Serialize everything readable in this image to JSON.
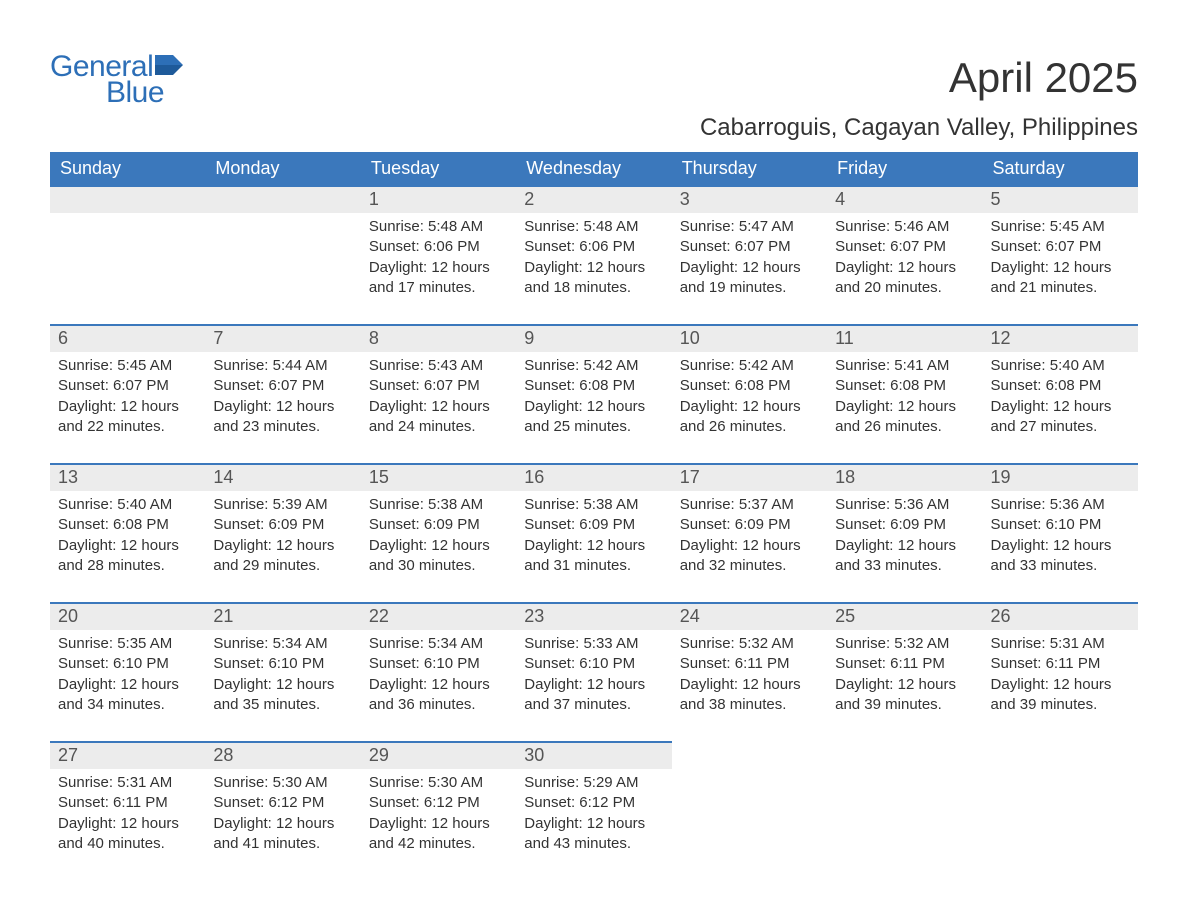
{
  "brand": {
    "line1": "General",
    "line2": "Blue",
    "accent_color": "#2d6fb7"
  },
  "title": "April 2025",
  "subtitle": "Cabarroguis, Cagayan Valley, Philippines",
  "colors": {
    "header_bg": "#3b78bc",
    "header_text": "#ffffff",
    "daynum_bg": "#ececec",
    "row_divider": "#3b78bc",
    "page_bg": "#ffffff",
    "text": "#333333"
  },
  "typography": {
    "title_fontsize": 42,
    "subtitle_fontsize": 24,
    "dow_fontsize": 18,
    "daynum_fontsize": 18,
    "body_fontsize": 15,
    "font_family": "Arial"
  },
  "days_of_week": [
    "Sunday",
    "Monday",
    "Tuesday",
    "Wednesday",
    "Thursday",
    "Friday",
    "Saturday"
  ],
  "weeks": [
    [
      {
        "day": "",
        "sunrise": "",
        "sunset": "",
        "daylight": ""
      },
      {
        "day": "",
        "sunrise": "",
        "sunset": "",
        "daylight": ""
      },
      {
        "day": "1",
        "sunrise": "Sunrise: 5:48 AM",
        "sunset": "Sunset: 6:06 PM",
        "daylight": "Daylight: 12 hours and 17 minutes."
      },
      {
        "day": "2",
        "sunrise": "Sunrise: 5:48 AM",
        "sunset": "Sunset: 6:06 PM",
        "daylight": "Daylight: 12 hours and 18 minutes."
      },
      {
        "day": "3",
        "sunrise": "Sunrise: 5:47 AM",
        "sunset": "Sunset: 6:07 PM",
        "daylight": "Daylight: 12 hours and 19 minutes."
      },
      {
        "day": "4",
        "sunrise": "Sunrise: 5:46 AM",
        "sunset": "Sunset: 6:07 PM",
        "daylight": "Daylight: 12 hours and 20 minutes."
      },
      {
        "day": "5",
        "sunrise": "Sunrise: 5:45 AM",
        "sunset": "Sunset: 6:07 PM",
        "daylight": "Daylight: 12 hours and 21 minutes."
      }
    ],
    [
      {
        "day": "6",
        "sunrise": "Sunrise: 5:45 AM",
        "sunset": "Sunset: 6:07 PM",
        "daylight": "Daylight: 12 hours and 22 minutes."
      },
      {
        "day": "7",
        "sunrise": "Sunrise: 5:44 AM",
        "sunset": "Sunset: 6:07 PM",
        "daylight": "Daylight: 12 hours and 23 minutes."
      },
      {
        "day": "8",
        "sunrise": "Sunrise: 5:43 AM",
        "sunset": "Sunset: 6:07 PM",
        "daylight": "Daylight: 12 hours and 24 minutes."
      },
      {
        "day": "9",
        "sunrise": "Sunrise: 5:42 AM",
        "sunset": "Sunset: 6:08 PM",
        "daylight": "Daylight: 12 hours and 25 minutes."
      },
      {
        "day": "10",
        "sunrise": "Sunrise: 5:42 AM",
        "sunset": "Sunset: 6:08 PM",
        "daylight": "Daylight: 12 hours and 26 minutes."
      },
      {
        "day": "11",
        "sunrise": "Sunrise: 5:41 AM",
        "sunset": "Sunset: 6:08 PM",
        "daylight": "Daylight: 12 hours and 26 minutes."
      },
      {
        "day": "12",
        "sunrise": "Sunrise: 5:40 AM",
        "sunset": "Sunset: 6:08 PM",
        "daylight": "Daylight: 12 hours and 27 minutes."
      }
    ],
    [
      {
        "day": "13",
        "sunrise": "Sunrise: 5:40 AM",
        "sunset": "Sunset: 6:08 PM",
        "daylight": "Daylight: 12 hours and 28 minutes."
      },
      {
        "day": "14",
        "sunrise": "Sunrise: 5:39 AM",
        "sunset": "Sunset: 6:09 PM",
        "daylight": "Daylight: 12 hours and 29 minutes."
      },
      {
        "day": "15",
        "sunrise": "Sunrise: 5:38 AM",
        "sunset": "Sunset: 6:09 PM",
        "daylight": "Daylight: 12 hours and 30 minutes."
      },
      {
        "day": "16",
        "sunrise": "Sunrise: 5:38 AM",
        "sunset": "Sunset: 6:09 PM",
        "daylight": "Daylight: 12 hours and 31 minutes."
      },
      {
        "day": "17",
        "sunrise": "Sunrise: 5:37 AM",
        "sunset": "Sunset: 6:09 PM",
        "daylight": "Daylight: 12 hours and 32 minutes."
      },
      {
        "day": "18",
        "sunrise": "Sunrise: 5:36 AM",
        "sunset": "Sunset: 6:09 PM",
        "daylight": "Daylight: 12 hours and 33 minutes."
      },
      {
        "day": "19",
        "sunrise": "Sunrise: 5:36 AM",
        "sunset": "Sunset: 6:10 PM",
        "daylight": "Daylight: 12 hours and 33 minutes."
      }
    ],
    [
      {
        "day": "20",
        "sunrise": "Sunrise: 5:35 AM",
        "sunset": "Sunset: 6:10 PM",
        "daylight": "Daylight: 12 hours and 34 minutes."
      },
      {
        "day": "21",
        "sunrise": "Sunrise: 5:34 AM",
        "sunset": "Sunset: 6:10 PM",
        "daylight": "Daylight: 12 hours and 35 minutes."
      },
      {
        "day": "22",
        "sunrise": "Sunrise: 5:34 AM",
        "sunset": "Sunset: 6:10 PM",
        "daylight": "Daylight: 12 hours and 36 minutes."
      },
      {
        "day": "23",
        "sunrise": "Sunrise: 5:33 AM",
        "sunset": "Sunset: 6:10 PM",
        "daylight": "Daylight: 12 hours and 37 minutes."
      },
      {
        "day": "24",
        "sunrise": "Sunrise: 5:32 AM",
        "sunset": "Sunset: 6:11 PM",
        "daylight": "Daylight: 12 hours and 38 minutes."
      },
      {
        "day": "25",
        "sunrise": "Sunrise: 5:32 AM",
        "sunset": "Sunset: 6:11 PM",
        "daylight": "Daylight: 12 hours and 39 minutes."
      },
      {
        "day": "26",
        "sunrise": "Sunrise: 5:31 AM",
        "sunset": "Sunset: 6:11 PM",
        "daylight": "Daylight: 12 hours and 39 minutes."
      }
    ],
    [
      {
        "day": "27",
        "sunrise": "Sunrise: 5:31 AM",
        "sunset": "Sunset: 6:11 PM",
        "daylight": "Daylight: 12 hours and 40 minutes."
      },
      {
        "day": "28",
        "sunrise": "Sunrise: 5:30 AM",
        "sunset": "Sunset: 6:12 PM",
        "daylight": "Daylight: 12 hours and 41 minutes."
      },
      {
        "day": "29",
        "sunrise": "Sunrise: 5:30 AM",
        "sunset": "Sunset: 6:12 PM",
        "daylight": "Daylight: 12 hours and 42 minutes."
      },
      {
        "day": "30",
        "sunrise": "Sunrise: 5:29 AM",
        "sunset": "Sunset: 6:12 PM",
        "daylight": "Daylight: 12 hours and 43 minutes."
      },
      {
        "day": "",
        "sunrise": "",
        "sunset": "",
        "daylight": ""
      },
      {
        "day": "",
        "sunrise": "",
        "sunset": "",
        "daylight": ""
      },
      {
        "day": "",
        "sunrise": "",
        "sunset": "",
        "daylight": ""
      }
    ]
  ]
}
